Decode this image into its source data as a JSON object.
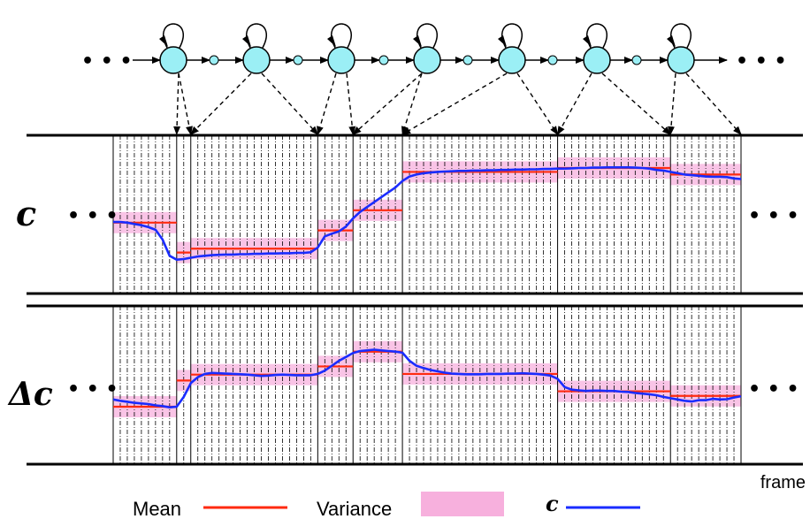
{
  "labels": {
    "c": "c",
    "delta_c": "Δc",
    "frame": "frame",
    "dots": "• • •"
  },
  "legend": {
    "mean": "Mean",
    "variance": "Variance",
    "c": "c"
  },
  "colors": {
    "mean": "#ff2a10",
    "variance": "#f7b0dd",
    "c": "#1a2cff",
    "state": "#9beff5",
    "line": "#000000"
  },
  "segments": [
    {
      "frames": [
        0,
        9
      ],
      "c_mean": 0.62,
      "dc_mean": -0.7
    },
    {
      "frames": [
        9,
        11
      ],
      "c_mean": -0.3,
      "dc_mean": 0.1
    },
    {
      "frames": [
        11,
        29
      ],
      "c_mean": -0.18,
      "dc_mean": 0.28
    },
    {
      "frames": [
        29,
        34
      ],
      "c_mean": 0.38,
      "dc_mean": 0.53
    },
    {
      "frames": [
        34,
        41
      ],
      "c_mean": 1.0,
      "dc_mean": 0.98
    },
    {
      "frames": [
        41,
        63
      ],
      "c_mean": 2.18,
      "dc_mean": 0.3
    },
    {
      "frames": [
        63,
        79
      ],
      "c_mean": 2.3,
      "dc_mean": -0.23
    },
    {
      "frames": [
        79,
        89
      ],
      "c_mean": 2.1,
      "dc_mean": -0.37
    }
  ],
  "c_trajectory": [
    0.64,
    0.64,
    0.62,
    0.58,
    0.54,
    0.48,
    0.4,
    0.1,
    -0.4,
    -0.52,
    -0.5,
    -0.46,
    -0.42,
    -0.4,
    -0.38,
    -0.37,
    -0.36,
    -0.36,
    -0.35,
    -0.35,
    -0.34,
    -0.34,
    -0.33,
    -0.33,
    -0.32,
    -0.32,
    -0.31,
    -0.31,
    -0.29,
    -0.15,
    0.2,
    0.28,
    0.35,
    0.5,
    0.75,
    0.95,
    1.1,
    1.25,
    1.4,
    1.55,
    1.7,
    1.9,
    2.04,
    2.1,
    2.14,
    2.16,
    2.18,
    2.19,
    2.2,
    2.21,
    2.21,
    2.22,
    2.22,
    2.23,
    2.23,
    2.24,
    2.24,
    2.25,
    2.25,
    2.26,
    2.26,
    2.27,
    2.27,
    2.28,
    2.28,
    2.29,
    2.3,
    2.3,
    2.31,
    2.31,
    2.32,
    2.32,
    2.32,
    2.32,
    2.31,
    2.3,
    2.28,
    2.24,
    2.22,
    2.18,
    2.14,
    2.1,
    2.08,
    2.06,
    2.04,
    2.03,
    2.03,
    2.02,
    1.98,
    1.96
  ],
  "dc_trajectory": [
    -0.48,
    -0.52,
    -0.55,
    -0.58,
    -0.6,
    -0.62,
    -0.66,
    -0.68,
    -0.72,
    -0.7,
    -0.4,
    0.02,
    0.2,
    0.3,
    0.33,
    0.32,
    0.31,
    0.3,
    0.29,
    0.28,
    0.26,
    0.24,
    0.25,
    0.27,
    0.28,
    0.27,
    0.26,
    0.26,
    0.26,
    0.3,
    0.4,
    0.55,
    0.7,
    0.82,
    0.94,
    1.0,
    1.02,
    1.04,
    1.02,
    1.0,
    0.98,
    0.95,
    0.7,
    0.55,
    0.48,
    0.42,
    0.38,
    0.34,
    0.31,
    0.3,
    0.29,
    0.29,
    0.29,
    0.3,
    0.3,
    0.3,
    0.31,
    0.31,
    0.32,
    0.31,
    0.3,
    0.28,
    0.25,
    0.15,
    -0.1,
    -0.18,
    -0.2,
    -0.22,
    -0.21,
    -0.21,
    -0.22,
    -0.22,
    -0.24,
    -0.25,
    -0.28,
    -0.3,
    -0.32,
    -0.35,
    -0.4,
    -0.44,
    -0.48,
    -0.52,
    -0.54,
    -0.5,
    -0.5,
    -0.46,
    -0.48,
    -0.47,
    -0.42,
    -0.38
  ]
}
